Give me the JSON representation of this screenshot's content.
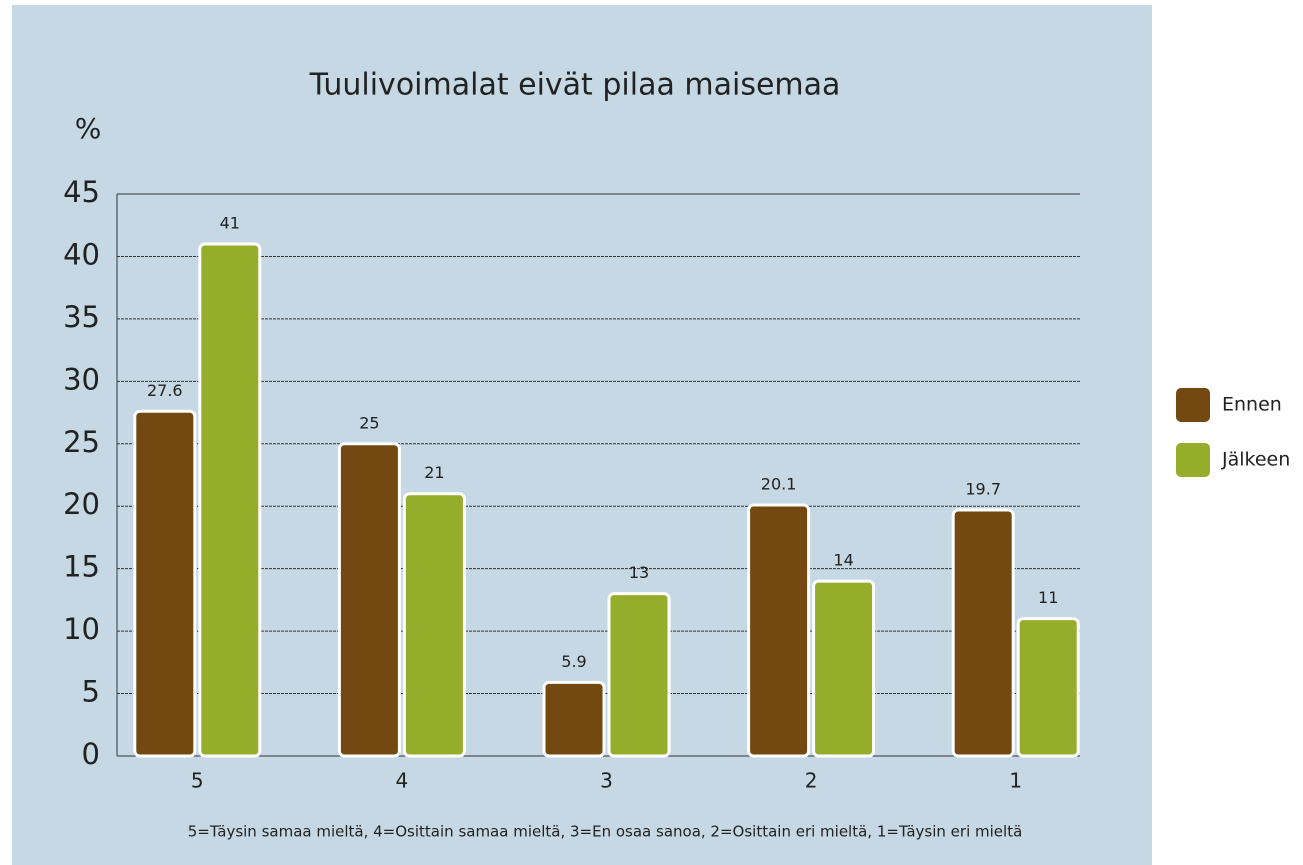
{
  "chart_data": {
    "type": "bar",
    "title": "Tuulivoimalat eivät pilaa maisemaa",
    "y_label": "%",
    "note": "5=Täysin samaa mieltä, 4=Osittain samaa mieltä, 3=En osaa sanoa, 2=Osittain eri mieltä, 1=Täysin eri mieltä",
    "categories": [
      "5",
      "4",
      "3",
      "2",
      "1"
    ],
    "series": [
      {
        "name": "Ennen",
        "color": "#744811",
        "values": [
          27.6,
          25,
          5.9,
          20.1,
          19.7
        ]
      },
      {
        "name": "Jälkeen",
        "color": "#95ad2b",
        "values": [
          41,
          21,
          13,
          14,
          11
        ]
      }
    ],
    "ylim": [
      0,
      45
    ],
    "yticks": [
      0,
      5,
      10,
      15,
      20,
      25,
      30,
      35,
      40,
      45
    ],
    "grid": true,
    "legend": "right"
  }
}
